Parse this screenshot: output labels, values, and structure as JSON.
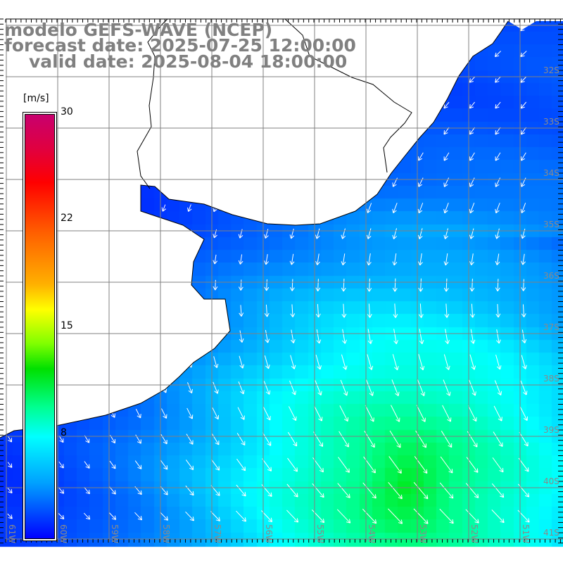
{
  "title": {
    "model": "modelo GEFS-WAVE (NCEP)",
    "forecast": "forecast date: 2025-07-25 12:00:00",
    "valid": "valid date: 2025-08-04 18:00:00"
  },
  "colorbar": {
    "unit": "[m/s]",
    "ticks": [
      "30",
      "22",
      "15",
      "8"
    ],
    "range": [
      0,
      30
    ]
  },
  "axes": {
    "lon_labels": [
      "61W",
      "60W",
      "59W",
      "58W",
      "57W",
      "56W",
      "55W",
      "54W",
      "53W",
      "52W",
      "51W"
    ],
    "lat_labels": [
      "32S",
      "33S",
      "34S",
      "35S",
      "36S",
      "37S",
      "38S",
      "39S",
      "40S",
      "41S"
    ]
  },
  "colors": {
    "land": "#ffffff",
    "grid": "#808080",
    "coast": "#000000",
    "arrow": "#ffffff"
  }
}
